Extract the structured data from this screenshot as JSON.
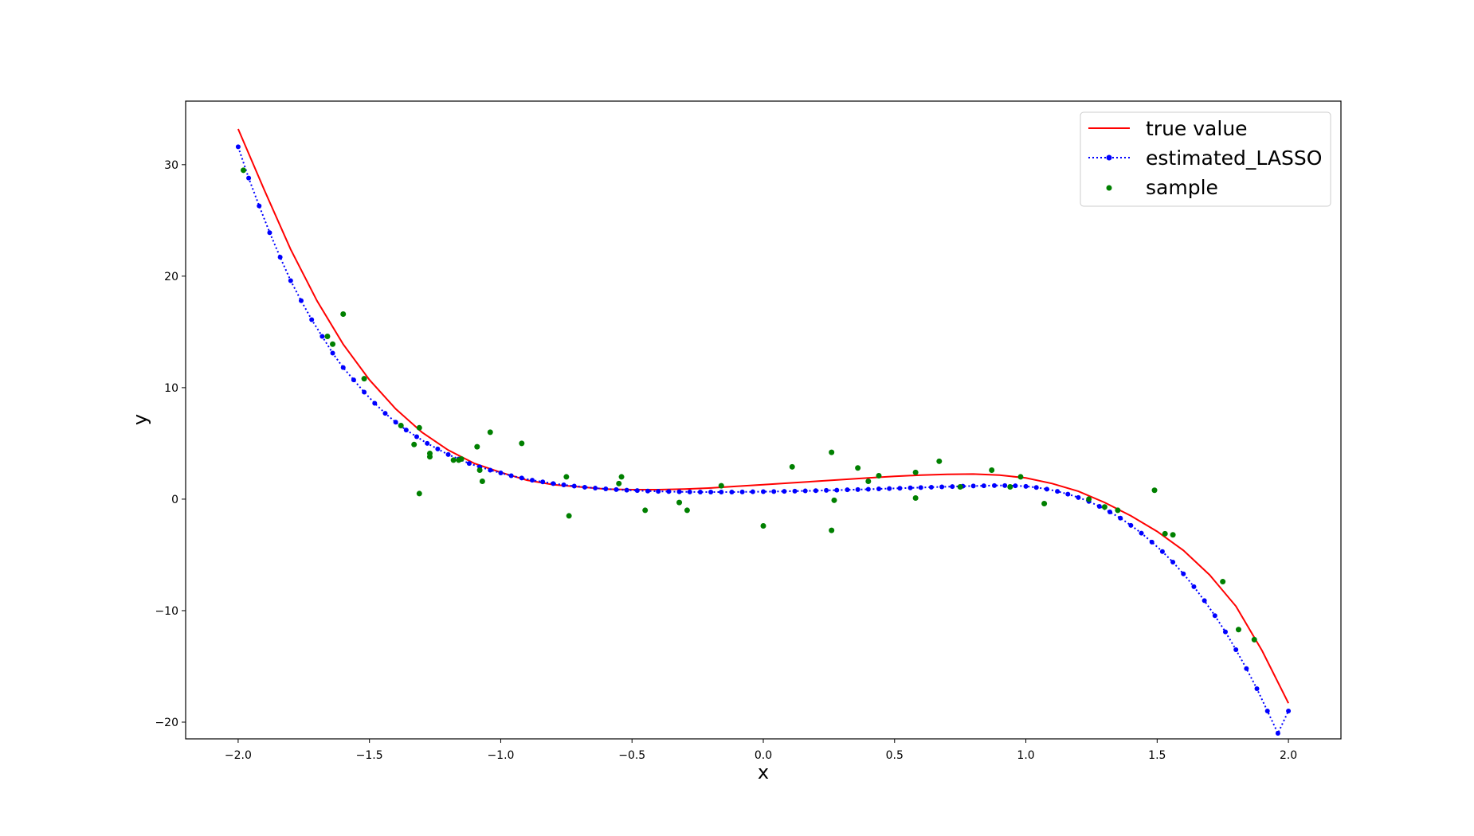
{
  "chart_data": {
    "type": "line",
    "title": "",
    "xlabel": "x",
    "ylabel": "y",
    "xlim": [
      -2.2,
      2.2
    ],
    "ylim": [
      -21.5,
      35.7
    ],
    "x_ticks": [
      -2.0,
      -1.5,
      -1.0,
      -0.5,
      0.0,
      0.5,
      1.0,
      1.5,
      2.0
    ],
    "x_tick_labels": [
      "−2.0",
      "−1.5",
      "−1.0",
      "−0.5",
      "0.0",
      "0.5",
      "1.0",
      "1.5",
      "2.0"
    ],
    "y_ticks": [
      -20,
      -10,
      0,
      10,
      20,
      30
    ],
    "y_tick_labels": [
      "−20",
      "−10",
      "0",
      "10",
      "20",
      "30"
    ],
    "grid": false,
    "legend_position": "top-right",
    "colors": {
      "true_value": "#ff0000",
      "estimated": "#0000ff",
      "sample": "#008000"
    },
    "legend": [
      "true value",
      "estimated_LASSO",
      "sample"
    ],
    "series": [
      {
        "name": "true value",
        "style": "solid-line",
        "x": [
          -2.0,
          -1.9,
          -1.8,
          -1.7,
          -1.6,
          -1.5,
          -1.4,
          -1.3,
          -1.2,
          -1.1,
          -1.0,
          -0.9,
          -0.8,
          -0.7,
          -0.6,
          -0.5,
          -0.4,
          -0.3,
          -0.2,
          -0.1,
          0.0,
          0.1,
          0.2,
          0.3,
          0.4,
          0.5,
          0.6,
          0.7,
          0.8,
          0.9,
          1.0,
          1.1,
          1.2,
          1.3,
          1.4,
          1.5,
          1.6,
          1.7,
          1.8,
          1.9,
          2.0
        ],
        "y": [
          33.2,
          27.7,
          22.4,
          17.8,
          13.9,
          10.7,
          8.1,
          6.0,
          4.4,
          3.2,
          2.4,
          1.7,
          1.3,
          1.1,
          0.9,
          0.85,
          0.85,
          0.9,
          1.0,
          1.15,
          1.3,
          1.45,
          1.6,
          1.75,
          1.9,
          2.05,
          2.15,
          2.22,
          2.25,
          2.15,
          1.9,
          1.4,
          0.7,
          -0.3,
          -1.5,
          -2.9,
          -4.6,
          -6.8,
          -9.6,
          -13.6,
          -18.3
        ]
      },
      {
        "name": "estimated_LASSO",
        "style": "dotted-line-with-markers",
        "x": [
          -2.0,
          -1.96,
          -1.92,
          -1.88,
          -1.84,
          -1.8,
          -1.76,
          -1.72,
          -1.68,
          -1.64,
          -1.6,
          -1.56,
          -1.52,
          -1.48,
          -1.44,
          -1.4,
          -1.36,
          -1.32,
          -1.28,
          -1.24,
          -1.2,
          -1.16,
          -1.12,
          -1.08,
          -1.04,
          -1.0,
          -0.96,
          -0.92,
          -0.88,
          -0.84,
          -0.8,
          -0.76,
          -0.72,
          -0.68,
          -0.64,
          -0.6,
          -0.56,
          -0.52,
          -0.48,
          -0.44,
          -0.4,
          -0.36,
          -0.32,
          -0.28,
          -0.24,
          -0.2,
          -0.16,
          -0.12,
          -0.08,
          -0.04,
          0.0,
          0.04,
          0.08,
          0.12,
          0.16,
          0.2,
          0.24,
          0.28,
          0.32,
          0.36,
          0.4,
          0.44,
          0.48,
          0.52,
          0.56,
          0.6,
          0.64,
          0.68,
          0.72,
          0.76,
          0.8,
          0.84,
          0.88,
          0.92,
          0.96,
          1.0,
          1.04,
          1.08,
          1.12,
          1.16,
          1.2,
          1.24,
          1.28,
          1.32,
          1.36,
          1.4,
          1.44,
          1.48,
          1.52,
          1.56,
          1.6,
          1.64,
          1.68,
          1.72,
          1.76,
          1.8,
          1.84,
          1.88,
          1.92,
          1.96,
          2.0
        ],
        "y": [
          31.6,
          28.8,
          26.3,
          23.9,
          21.7,
          19.6,
          17.8,
          16.1,
          14.6,
          13.1,
          11.8,
          10.7,
          9.6,
          8.6,
          7.7,
          6.9,
          6.2,
          5.6,
          5.0,
          4.5,
          4.0,
          3.6,
          3.2,
          2.9,
          2.6,
          2.35,
          2.1,
          1.9,
          1.7,
          1.55,
          1.4,
          1.28,
          1.17,
          1.07,
          0.99,
          0.92,
          0.86,
          0.81,
          0.77,
          0.73,
          0.7,
          0.68,
          0.66,
          0.65,
          0.64,
          0.64,
          0.64,
          0.64,
          0.65,
          0.66,
          0.67,
          0.68,
          0.7,
          0.72,
          0.74,
          0.76,
          0.79,
          0.81,
          0.84,
          0.86,
          0.89,
          0.92,
          0.95,
          0.98,
          1.01,
          1.04,
          1.07,
          1.1,
          1.13,
          1.16,
          1.18,
          1.2,
          1.22,
          1.22,
          1.2,
          1.15,
          1.05,
          0.9,
          0.7,
          0.45,
          0.15,
          -0.2,
          -0.65,
          -1.15,
          -1.7,
          -2.35,
          -3.05,
          -3.85,
          -4.7,
          -5.65,
          -6.7,
          -7.85,
          -9.1,
          -10.45,
          -11.9,
          -13.5,
          -15.2,
          -17.0,
          -19.0,
          -21.0,
          -19.0
        ]
      },
      {
        "name": "sample",
        "style": "scatter",
        "x": [
          -1.98,
          -1.6,
          -1.66,
          -1.64,
          -1.52,
          -1.38,
          -1.31,
          -1.33,
          -1.31,
          -1.27,
          -1.27,
          -1.18,
          -1.16,
          -1.15,
          -1.09,
          -1.08,
          -1.07,
          -1.04,
          -0.92,
          -0.75,
          -0.74,
          -0.55,
          -0.54,
          -0.45,
          -0.32,
          -0.29,
          -0.16,
          0.0,
          0.11,
          0.26,
          0.26,
          0.27,
          0.36,
          0.4,
          0.44,
          0.58,
          0.58,
          0.67,
          0.75,
          0.87,
          0.94,
          0.98,
          1.07,
          1.24,
          1.3,
          1.35,
          1.49,
          1.53,
          1.56,
          1.75,
          1.81,
          1.87
        ],
        "y": [
          29.5,
          16.6,
          14.6,
          13.9,
          10.8,
          6.6,
          6.4,
          4.9,
          0.5,
          4.1,
          3.8,
          3.5,
          3.5,
          3.6,
          4.7,
          2.6,
          1.6,
          6.0,
          5.0,
          2.0,
          -1.5,
          1.4,
          2.0,
          -1.0,
          -0.3,
          -1.0,
          1.2,
          -2.4,
          2.9,
          4.2,
          -2.8,
          -0.1,
          2.8,
          1.6,
          2.1,
          2.4,
          0.1,
          3.4,
          1.1,
          2.6,
          1.1,
          2.0,
          -0.4,
          0.0,
          -0.7,
          -1.0,
          0.8,
          -3.1,
          -3.2,
          -7.4,
          -11.7,
          -12.6
        ]
      }
    ]
  }
}
